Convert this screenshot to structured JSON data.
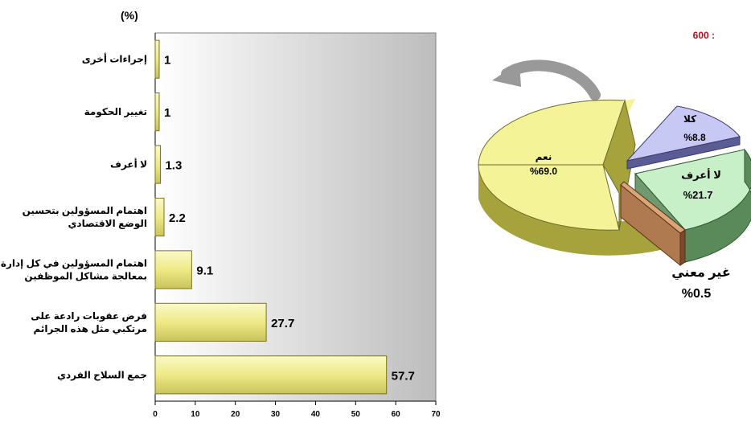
{
  "header": {
    "unit_label": "(%)",
    "sample_label": "600 :"
  },
  "colors": {
    "accent_text": "#b5121b",
    "bar_fill": "#f0ec8c",
    "bar_edge": "#7a7420",
    "plot_bg": "#d3d3d3"
  },
  "chart_data": [
    {
      "type": "bar",
      "orientation": "horizontal",
      "title": "",
      "unit": "(%)",
      "xlim": [
        0,
        70
      ],
      "xticks": [
        0,
        10,
        20,
        30,
        40,
        50,
        60,
        70
      ],
      "grid": false,
      "categories": [
        [
          "إجراءات أخرى"
        ],
        [
          "تغيير الحكومة"
        ],
        [
          "لا أعرف"
        ],
        [
          "اهتمام المسؤولين بتحسين",
          "الوضع الاقتصادي"
        ],
        [
          "اهتمام المسؤولين في كل إدارة",
          "بمعالجة مشاكل الموظفين"
        ],
        [
          "فرض عقوبات رادعة على",
          "مرتكبي مثل هذه الجرائم"
        ],
        [
          "جمع السلاح الفردي"
        ]
      ],
      "values": [
        1,
        1,
        1.3,
        2.2,
        9.1,
        27.7,
        57.7
      ],
      "value_labels": [
        "1",
        "1",
        "1.3",
        "2.2",
        "9.1",
        "27.7",
        "57.7"
      ]
    },
    {
      "type": "pie",
      "style": "3d-exploded",
      "slices": [
        {
          "label": "نعم",
          "value": 69.0,
          "text": "%69.0",
          "color": "#f5f397",
          "side": "#a6a23c"
        },
        {
          "label": "كلا",
          "value": 8.8,
          "text": "%8.8",
          "color": "#c8c8f5",
          "side": "#5b5b95"
        },
        {
          "label": "لا أعرف",
          "value": 21.7,
          "text": "%21.7",
          "color": "#c8f0c8",
          "side": "#5a8a5a"
        },
        {
          "label": "غير معني",
          "value": 0.5,
          "text": "%0.5",
          "color": "#d9a67a",
          "side": "#7a4a2a"
        }
      ]
    }
  ]
}
